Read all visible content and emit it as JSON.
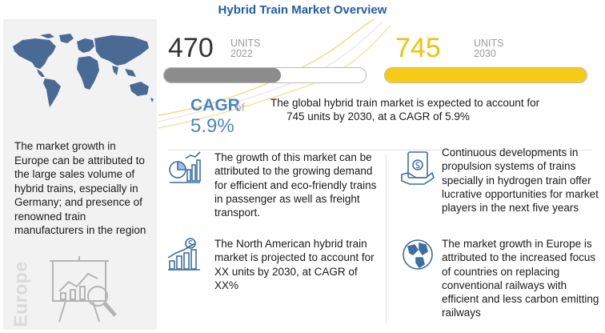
{
  "title": "Hybrid Train Market Overview",
  "colors": {
    "title_blue": "#1f5fa8",
    "cagr_blue": "#4a86c5",
    "yellow": "#f8cc14",
    "gray_bar": "#8c8c8c",
    "map_blue": "#4a6a96"
  },
  "stats": {
    "y2022": {
      "value": "470",
      "unit": "UNITS",
      "year": "2022",
      "fill_fraction": 0.58
    },
    "y2030": {
      "value": "745",
      "unit": "UNITS",
      "year": "2030",
      "fill_fraction": 1.0
    }
  },
  "cagr": {
    "label": "CAGR",
    "of": "of",
    "value": "5.9%"
  },
  "summary": {
    "line1": "The global hybrid train market is expected to account for",
    "line2": "745 units by 2030, at a CAGR of 5.9%"
  },
  "left_panel": {
    "text": "The market growth in Europe can be attributed to the large sales volume of hybrid trains, especially in Germany; and presence of renowned train manufacturers in the region",
    "region_label": "Europe"
  },
  "points": {
    "growth": "The growth of this market can be attributed to the growing demand for efficient and eco-friendly trains in passenger as well as freight transport.",
    "north_america": "The North American hybrid train market is projected to account for XX units by 2030, at CAGR of XX%",
    "hydrogen": "Continuous developments in propulsion systems of trains specially in hydrogen train offer lucrative opportunities for market players in the next five years",
    "europe": "The market growth in Europe is attributed to the increased focus of countries on replacing conventional railways with efficient and less carbon emitting railways"
  },
  "icons": {
    "map": "world-map-icon",
    "presentation": "presentation-chart-icon",
    "growth": "growth-chart-icon",
    "north_america": "dollar-bar-chart-icon",
    "hydrogen": "money-hand-icon",
    "europe": "globe-icon"
  }
}
